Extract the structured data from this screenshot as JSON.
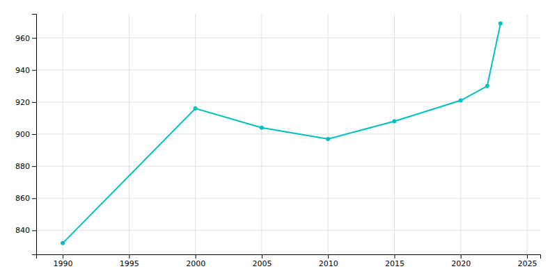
{
  "chart_data": {
    "type": "line",
    "x": [
      1990,
      2000,
      2005,
      2010,
      2015,
      2020,
      2022,
      2023
    ],
    "values": [
      832,
      916,
      904,
      897,
      908,
      921,
      930,
      969
    ],
    "color": "#00BFBF",
    "marker": "circle",
    "xlim": [
      1988,
      2026
    ],
    "ylim": [
      825,
      975
    ],
    "xticks": [
      1990,
      1995,
      2000,
      2005,
      2010,
      2015,
      2020,
      2025
    ],
    "yticks": [
      840,
      860,
      880,
      900,
      920,
      940,
      960
    ],
    "grid": true
  }
}
